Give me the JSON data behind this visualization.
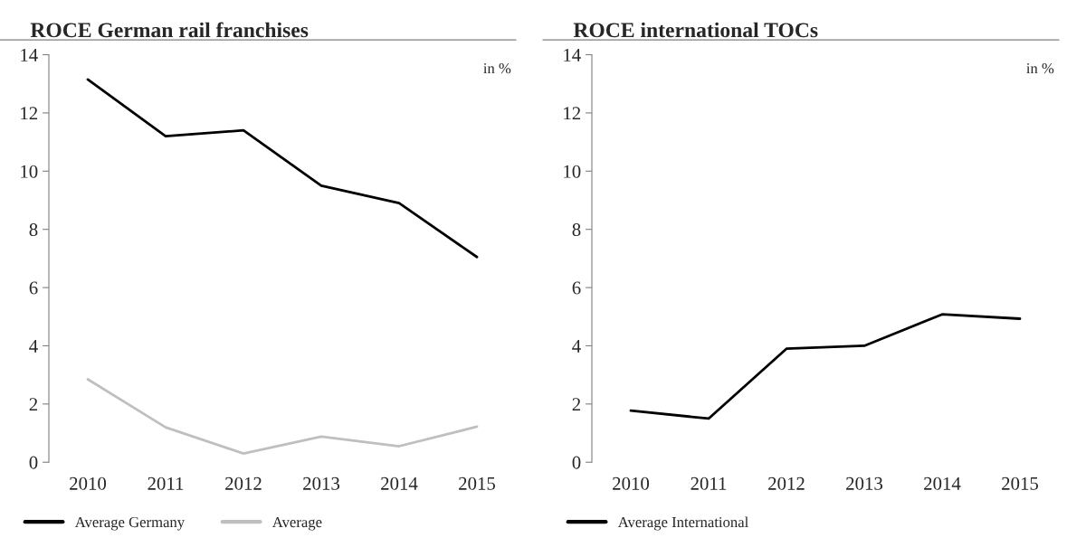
{
  "chart_data": [
    {
      "type": "line",
      "title": "ROCE German rail franchises",
      "annotations": [
        "in %"
      ],
      "categories": [
        "2010",
        "2011",
        "2012",
        "2013",
        "2014",
        "2015"
      ],
      "series": [
        {
          "name": "Average Germany",
          "color": "#000000",
          "values": [
            13.15,
            11.2,
            11.4,
            9.5,
            8.9,
            7.05
          ]
        },
        {
          "name": "Average",
          "color": "#bfbfbf",
          "values": [
            2.85,
            1.2,
            0.3,
            0.88,
            0.55,
            1.22
          ]
        }
      ],
      "ylim": [
        0,
        14
      ],
      "yticks": [
        0,
        2,
        4,
        6,
        8,
        10,
        12,
        14
      ],
      "grid": false,
      "legend": "bottom"
    },
    {
      "type": "line",
      "title": "ROCE international TOCs",
      "annotations": [
        "in %"
      ],
      "categories": [
        "2010",
        "2011",
        "2012",
        "2013",
        "2014",
        "2015"
      ],
      "series": [
        {
          "name": "Average International",
          "color": "#000000",
          "values": [
            1.77,
            1.5,
            3.9,
            4.0,
            5.08,
            4.93
          ]
        }
      ],
      "ylim": [
        0,
        14
      ],
      "yticks": [
        0,
        2,
        4,
        6,
        8,
        10,
        12,
        14
      ],
      "grid": false,
      "legend": "bottom"
    }
  ]
}
